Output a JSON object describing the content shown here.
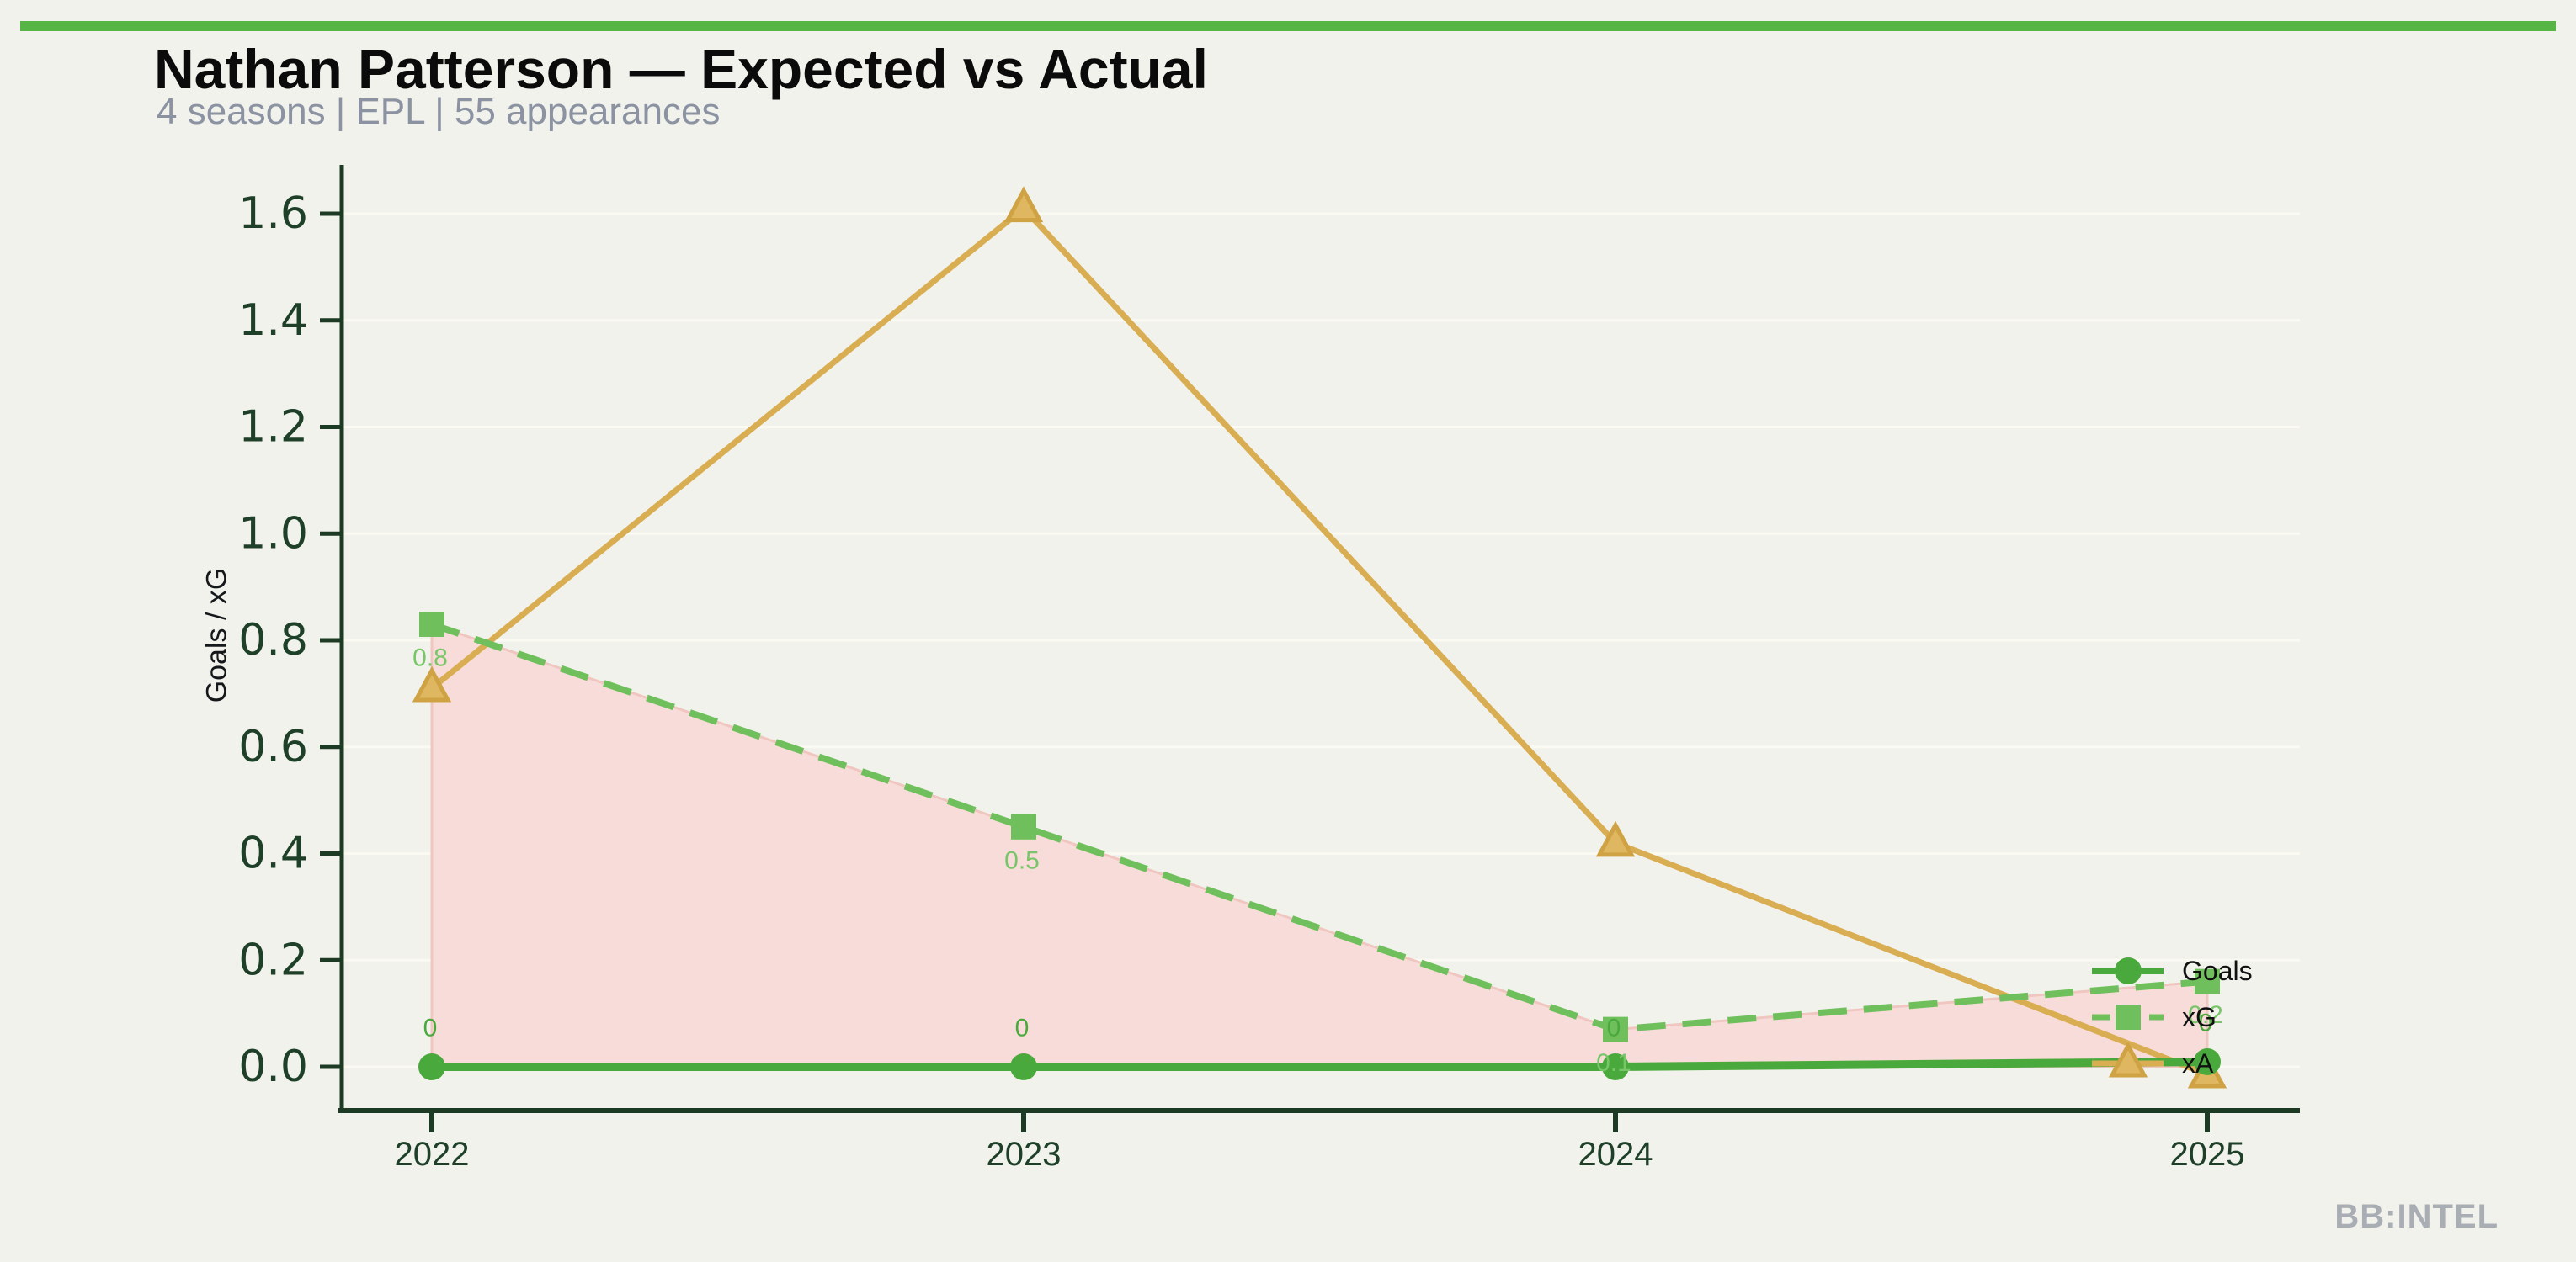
{
  "page": {
    "title": "Nathan Patterson — Expected vs Actual",
    "subtitle": "4 seasons | EPL | 55 appearances",
    "watermark": "BB:INTEL",
    "background_color": "#f2f2ec",
    "accent_bar_color": "#56b545",
    "subtitle_color": "#8b92a2",
    "watermark_color": "#a9adb4",
    "axis_color": "#1d3a25",
    "tick_label_color": "#1e4029"
  },
  "chart_data": {
    "type": "line",
    "title": "Nathan Patterson — Expected vs Actual",
    "subtitle": "4 seasons | EPL | 55 appearances",
    "xlabel": "",
    "ylabel": "Goals / xG",
    "x": [
      2022,
      2023,
      2024,
      2025
    ],
    "x_tick_labels": [
      "2022",
      "2023",
      "2024",
      "2025"
    ],
    "yticks": [
      0.0,
      0.2,
      0.4,
      0.6,
      0.8,
      1.0,
      1.2,
      1.4,
      1.6
    ],
    "ytick_labels": [
      "0.0",
      "0.2",
      "0.4",
      "0.6",
      "0.8",
      "1.0",
      "1.2",
      "1.4",
      "1.6"
    ],
    "ylim": [
      -0.08,
      1.69
    ],
    "grid": "horizontal subtle lines at each y tick",
    "legend_position": "right edge, frameless, stacked beside final points",
    "series": [
      {
        "name": "Goals",
        "marker": "circle",
        "line_style": "solid",
        "color": "#4aa93c",
        "values": [
          0,
          0,
          0,
          0
        ],
        "point_labels": [
          "0",
          "0",
          "0",
          "0"
        ],
        "label_color": "#4aa93c",
        "label_side": "above"
      },
      {
        "name": "xG",
        "marker": "square",
        "line_style": "dashed",
        "color": "#6fc05d",
        "values": [
          0.83,
          0.45,
          0.07,
          0.16
        ],
        "point_labels": [
          "0.8",
          "0.5",
          "0.1",
          "0.2"
        ],
        "label_color": "#79c569",
        "label_side": "below"
      },
      {
        "name": "xA",
        "marker": "triangle-up",
        "line_style": "solid",
        "color": "#d9ad52",
        "marker_fill": "#e0b761",
        "marker_edge": "#cfa243",
        "values": [
          0.71,
          1.61,
          0.42,
          0.0
        ],
        "point_labels": [],
        "label_color": "#d9ad52",
        "label_side": "none"
      }
    ],
    "shaded_area": {
      "between": [
        "xG",
        "Goals"
      ],
      "fill": "#f8dcd9",
      "edge": "#f0c6c1"
    }
  }
}
